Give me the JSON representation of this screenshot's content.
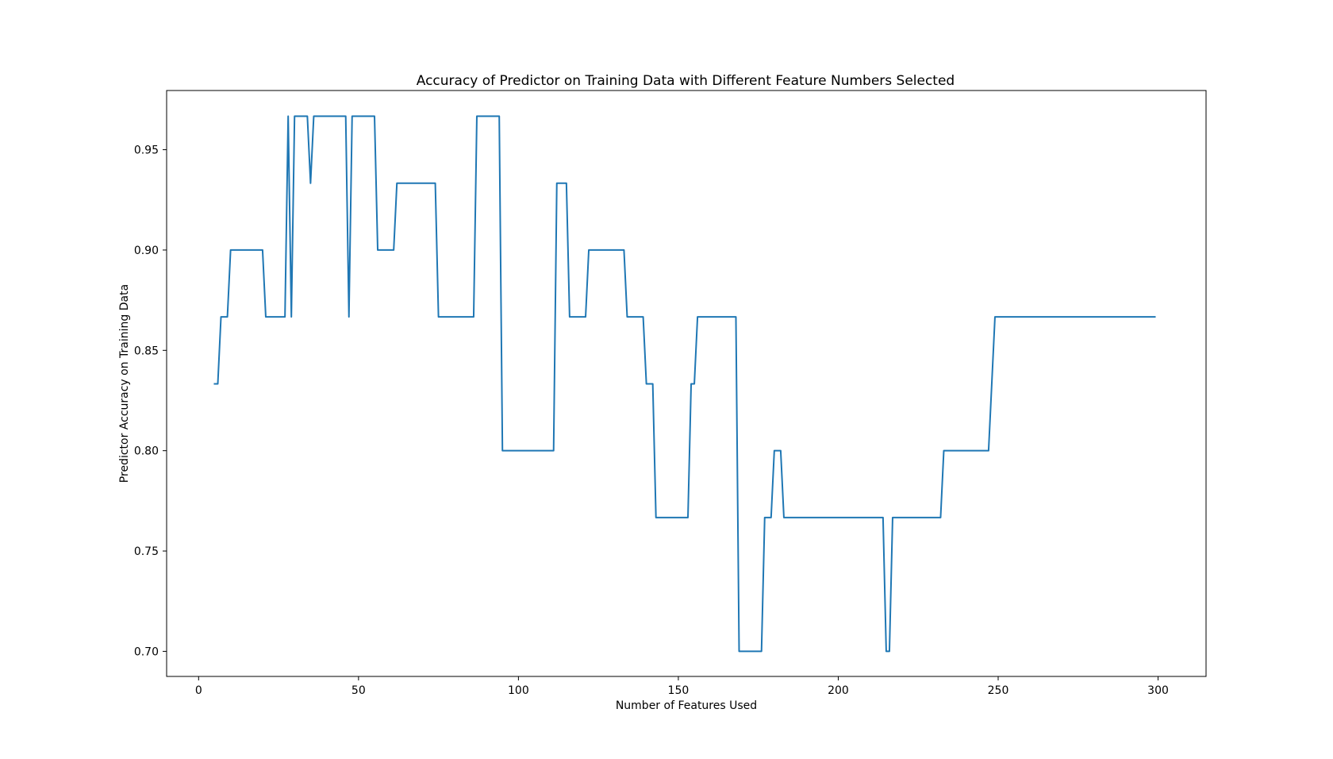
{
  "chart_data": {
    "type": "line",
    "title": "Accuracy of Predictor on Training Data with Different Feature Numbers Selected",
    "xlabel": "Number of Features Used",
    "ylabel": "Predictor Accuracy on Training Data",
    "xlim": [
      -10,
      315
    ],
    "ylim": [
      0.6875,
      0.9795
    ],
    "xticks": [
      0,
      50,
      100,
      150,
      200,
      250,
      300
    ],
    "xtick_labels": [
      "0",
      "50",
      "100",
      "150",
      "200",
      "250",
      "300"
    ],
    "yticks": [
      0.7,
      0.75,
      0.8,
      0.85,
      0.9,
      0.95
    ],
    "ytick_labels": [
      "0.70",
      "0.75",
      "0.80",
      "0.85",
      "0.90",
      "0.95"
    ],
    "grid": false,
    "legend": "none",
    "series": [
      {
        "color": "#1f77b4",
        "points": [
          [
            5,
            0.8333
          ],
          [
            6,
            0.8333
          ],
          [
            7,
            0.8667
          ],
          [
            9,
            0.8667
          ],
          [
            10,
            0.9
          ],
          [
            20,
            0.9
          ],
          [
            21,
            0.8667
          ],
          [
            27,
            0.8667
          ],
          [
            28,
            0.9667
          ],
          [
            29,
            0.8667
          ],
          [
            30,
            0.9667
          ],
          [
            34,
            0.9667
          ],
          [
            35,
            0.9333
          ],
          [
            36,
            0.9667
          ],
          [
            46,
            0.9667
          ],
          [
            47,
            0.8667
          ],
          [
            48,
            0.9667
          ],
          [
            55,
            0.9667
          ],
          [
            56,
            0.9
          ],
          [
            61,
            0.9
          ],
          [
            62,
            0.9333
          ],
          [
            74,
            0.9333
          ],
          [
            75,
            0.8667
          ],
          [
            86,
            0.8667
          ],
          [
            87,
            0.9667
          ],
          [
            94,
            0.9667
          ],
          [
            95,
            0.8
          ],
          [
            111,
            0.8
          ],
          [
            112,
            0.9333
          ],
          [
            115,
            0.9333
          ],
          [
            116,
            0.8667
          ],
          [
            121,
            0.8667
          ],
          [
            122,
            0.9
          ],
          [
            133,
            0.9
          ],
          [
            134,
            0.8667
          ],
          [
            139,
            0.8667
          ],
          [
            140,
            0.8333
          ],
          [
            142,
            0.8333
          ],
          [
            143,
            0.7667
          ],
          [
            153,
            0.7667
          ],
          [
            154,
            0.8333
          ],
          [
            155,
            0.8333
          ],
          [
            156,
            0.8667
          ],
          [
            168,
            0.8667
          ],
          [
            169,
            0.7
          ],
          [
            176,
            0.7
          ],
          [
            177,
            0.7667
          ],
          [
            179,
            0.7667
          ],
          [
            180,
            0.8
          ],
          [
            182,
            0.8
          ],
          [
            183,
            0.7667
          ],
          [
            214,
            0.7667
          ],
          [
            215,
            0.7
          ],
          [
            216,
            0.7
          ],
          [
            217,
            0.7667
          ],
          [
            232,
            0.7667
          ],
          [
            233,
            0.8
          ],
          [
            247,
            0.8
          ],
          [
            249,
            0.8667
          ],
          [
            299,
            0.8667
          ]
        ]
      }
    ]
  }
}
